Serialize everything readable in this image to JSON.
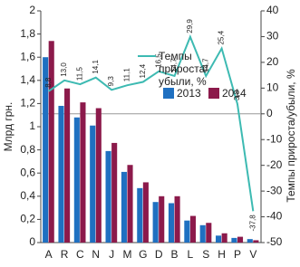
{
  "chart_data": {
    "type": "bar-line",
    "y_label": "Млрд грн.",
    "y2_label": "Темпы прироста/убыли, %",
    "categories": [
      "A",
      "R",
      "C",
      "N",
      "J",
      "M",
      "G",
      "D",
      "B",
      "L",
      "S",
      "H",
      "P",
      "V"
    ],
    "series": [
      {
        "name": "2013",
        "color": "#1f70c1",
        "values": [
          1.6,
          1.18,
          1.08,
          1.01,
          0.79,
          0.61,
          0.47,
          0.35,
          0.34,
          0.19,
          0.15,
          0.06,
          0.04,
          0.03
        ]
      },
      {
        "name": "2014",
        "color": "#8c1a4b",
        "values": [
          1.74,
          1.33,
          1.21,
          1.16,
          0.86,
          0.67,
          0.52,
          0.4,
          0.4,
          0.23,
          0.17,
          0.08,
          0.05,
          0.02
        ]
      },
      {
        "name": "Темпы прироста/убыли, %",
        "color": "#3dbab2",
        "axis": "y2",
        "line": true,
        "values": [
          8.8,
          13.0,
          11.5,
          14.1,
          9.3,
          11.1,
          12.4,
          16.5,
          14.7,
          29.9,
          14.7,
          25.4,
          3.8,
          -37.8
        ],
        "value_labels": [
          "8,8",
          "13,0",
          "11,5",
          "14,1",
          "9,3",
          "11,1",
          "12,4",
          "16,5",
          "14,7",
          "29,9",
          "14,7",
          "25,4",
          "3,8",
          "-37,8"
        ]
      }
    ],
    "ylim": [
      0,
      2
    ],
    "yticks": [
      0,
      {
        "value": 0.2,
        "label": "0,2"
      },
      {
        "value": 0.4,
        "label": "0,4"
      },
      {
        "value": 0.6,
        "label": "0,6"
      },
      {
        "value": 0.8,
        "label": "0,8"
      },
      1,
      {
        "value": 1.2,
        "label": "1,2"
      },
      {
        "value": 1.4,
        "label": "1,4"
      },
      {
        "value": 1.6,
        "label": "1,6"
      },
      {
        "value": 1.8,
        "label": "1,8"
      },
      2
    ],
    "y2lim": [
      -50,
      40
    ],
    "y2ticks": [
      -50,
      -40,
      -30,
      -20,
      -10,
      0,
      10,
      20,
      30,
      40
    ]
  }
}
